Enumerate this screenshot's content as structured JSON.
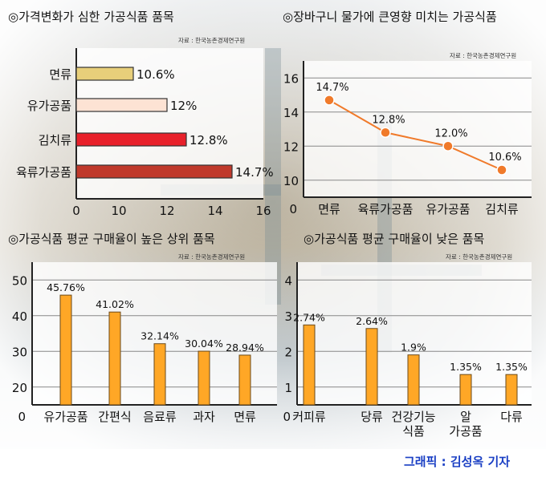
{
  "charts": {
    "price_change": {
      "title": "◎가격변화가 심한 가공식품 품목",
      "source": "자료 : 한국농촌경제연구원"
    },
    "price_impact": {
      "title": "◎장바구니 물가에 큰영향 미치는 가공식품",
      "source": "자료 : 한국농촌경제연구원"
    },
    "high_purchase": {
      "title": "◎가공식품 평균 구매율이 높은 상위 품목",
      "source": "자료 : 한국농촌경제연구원"
    },
    "low_purchase": {
      "title": "◎가공식품 평균 구매율이 낮은 품목",
      "source": "자료 : 한국농촌경제연구원"
    }
  },
  "credit": "그래픽 : 김성옥 기자",
  "colors": {
    "noodles": "#e8cf7a",
    "dairy": "#fde3d4",
    "kimchi": "#e8202a",
    "processed_meat": "#c0392b",
    "line": "#f07a2a",
    "bar_orange": "#ffa726",
    "credit": "#1a3fc4"
  },
  "chart_data": [
    {
      "type": "bar",
      "orientation": "horizontal",
      "categories": [
        "면류",
        "유가공품",
        "김치류",
        "육류가공품"
      ],
      "values": [
        10.6,
        12,
        12.8,
        14.7
      ],
      "labels": [
        "10.6%",
        "12%",
        "12.8%",
        "14.7%"
      ],
      "xlim": [
        0,
        16
      ],
      "xticks": [
        "0",
        "10",
        "12",
        "14",
        "16"
      ],
      "grid": false
    },
    {
      "type": "line",
      "categories": [
        "면류",
        "육류가공품",
        "유가공품",
        "김치류"
      ],
      "values": [
        14.7,
        12.8,
        12.0,
        10.6
      ],
      "labels": [
        "14.7%",
        "12.8%",
        "12.0%",
        "10.6%"
      ],
      "ylim": [
        9,
        17
      ],
      "yticks": [
        "10",
        "12",
        "14",
        "16"
      ],
      "origin_label": "0",
      "grid": true
    },
    {
      "type": "bar",
      "categories": [
        "유가공품",
        "간편식",
        "음료류",
        "과자",
        "면류"
      ],
      "values": [
        45.76,
        41.02,
        32.14,
        30.04,
        28.94
      ],
      "labels": [
        "45.76%",
        "41.02%",
        "32.14%",
        "30.04%",
        "28.94%"
      ],
      "ylim": [
        15,
        55
      ],
      "yticks": [
        "20",
        "30",
        "40",
        "50"
      ],
      "origin_label": "0",
      "grid": true
    },
    {
      "type": "bar",
      "categories": [
        "커피류",
        "당류",
        "건강기능\n식품",
        "알\n가공품",
        "다류"
      ],
      "values": [
        2.74,
        2.64,
        1.9,
        1.35,
        1.35
      ],
      "labels": [
        "2.74%",
        "2.64%",
        "1.9%",
        "1.35%",
        "1.35%"
      ],
      "ylim": [
        0.5,
        4.5
      ],
      "yticks": [
        "1",
        "2",
        "3",
        "4"
      ],
      "origin_label": "0",
      "grid": true
    }
  ]
}
